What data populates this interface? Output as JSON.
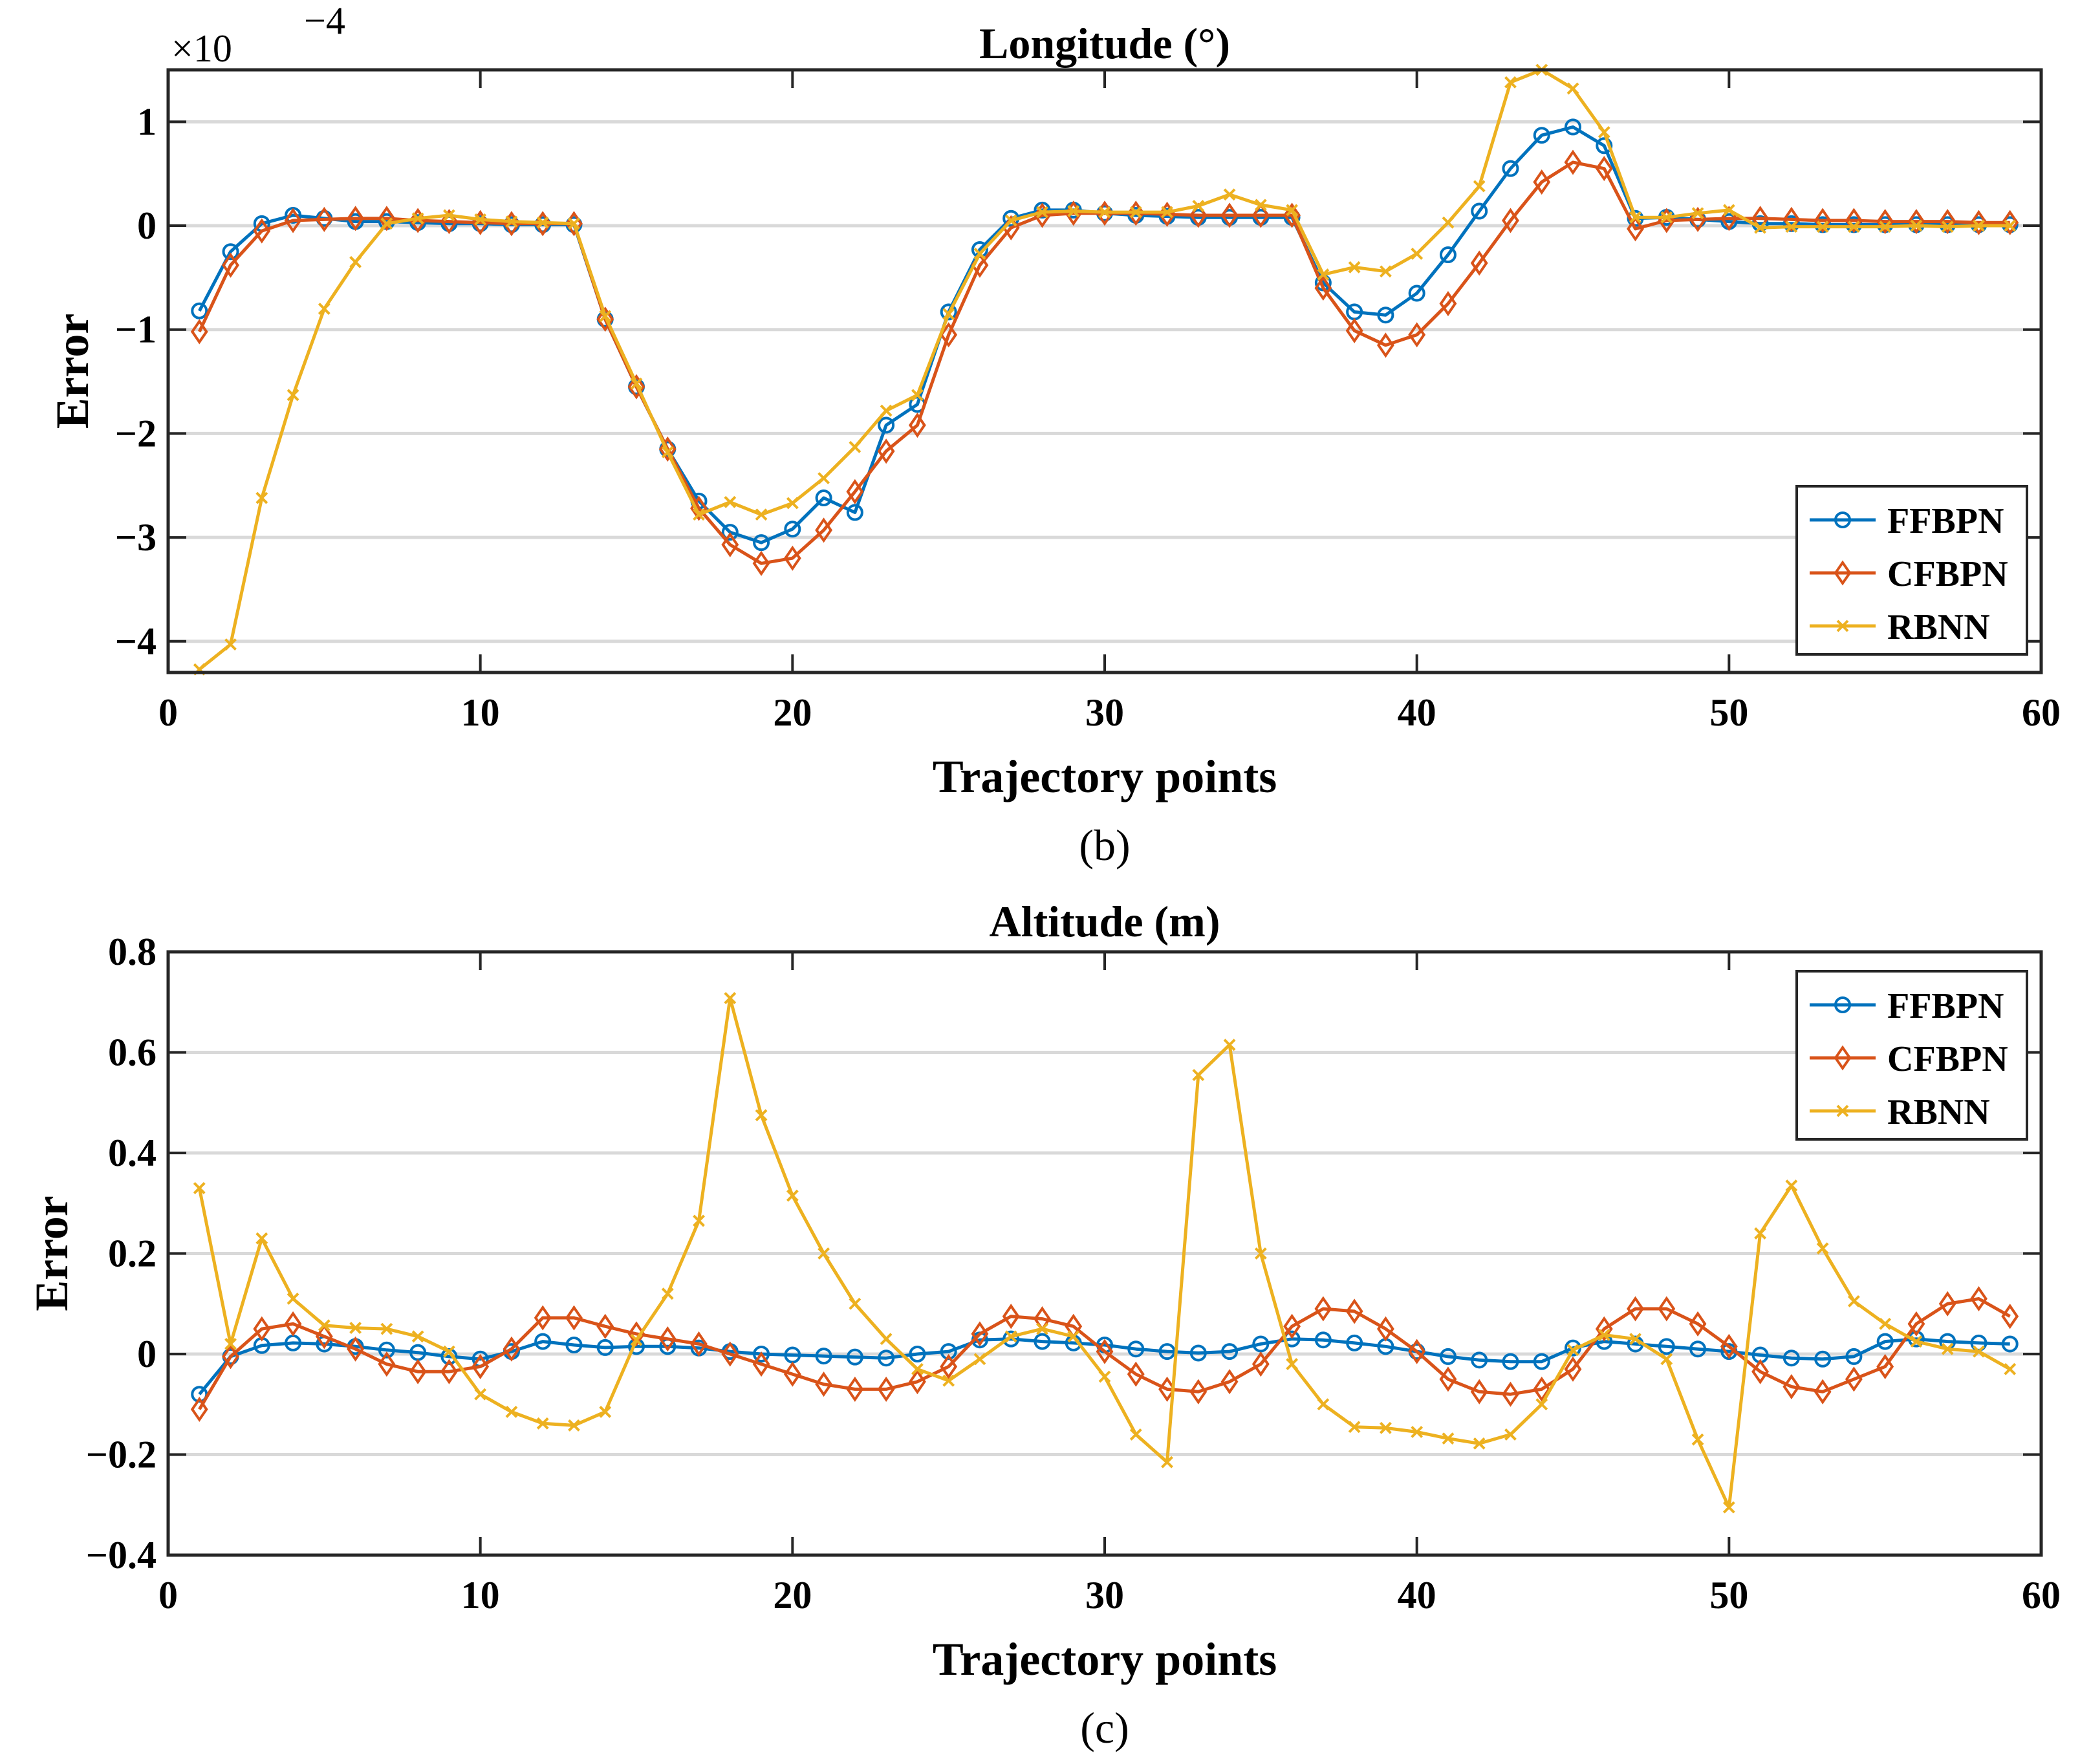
{
  "colors": {
    "FFBPN": "#0072BD",
    "CFBPN": "#D95319",
    "RBNN": "#EDB120",
    "grid": "#d9d9d9",
    "axes": "#262626"
  },
  "chart_data": [
    {
      "type": "line",
      "panel": "b",
      "title": "Longitude (°)",
      "caption": "(b)",
      "xlabel": "Trajectory points",
      "ylabel": "Error",
      "exponent_label": "×10",
      "exponent_power": "−4",
      "xlim": [
        0,
        60
      ],
      "ylim": [
        -4.3,
        1.5
      ],
      "xticks": [
        0,
        10,
        20,
        30,
        40,
        50,
        60
      ],
      "xtick_labels": [
        "0",
        "10",
        "20",
        "30",
        "40",
        "50",
        "60"
      ],
      "yticks": [
        1,
        0,
        -1,
        -2,
        -3,
        -4
      ],
      "ytick_labels": [
        "1",
        "0",
        "−1",
        "−2",
        "−3",
        "−4"
      ],
      "legend_position": "bottom-right",
      "x": [
        1,
        2,
        3,
        4,
        5,
        6,
        7,
        8,
        9,
        10,
        11,
        12,
        13,
        14,
        15,
        16,
        17,
        18,
        19,
        20,
        21,
        22,
        23,
        24,
        25,
        26,
        27,
        28,
        29,
        30,
        31,
        32,
        33,
        34,
        35,
        36,
        37,
        38,
        39,
        40,
        41,
        42,
        43,
        44,
        45,
        46,
        47,
        48,
        49,
        50,
        51,
        52,
        53,
        54,
        55,
        56,
        57,
        58,
        59
      ],
      "series": [
        {
          "name": "FFBPN",
          "marker": "circle",
          "values": [
            -0.82,
            -0.25,
            0.02,
            0.1,
            0.07,
            0.04,
            0.04,
            0.03,
            0.02,
            0.02,
            0.01,
            0.01,
            0.01,
            -0.9,
            -1.55,
            -2.15,
            -2.65,
            -2.95,
            -3.05,
            -2.92,
            -2.62,
            -2.76,
            -1.92,
            -1.72,
            -0.83,
            -0.23,
            0.07,
            0.15,
            0.15,
            0.12,
            0.1,
            0.09,
            0.08,
            0.08,
            0.08,
            0.08,
            -0.55,
            -0.83,
            -0.86,
            -0.65,
            -0.28,
            0.14,
            0.55,
            0.87,
            0.95,
            0.77,
            0.07,
            0.08,
            0.06,
            0.04,
            0.02,
            0.02,
            0.01,
            0.01,
            0.01,
            0.01,
            0.01,
            0.01,
            0.01
          ]
        },
        {
          "name": "CFBPN",
          "marker": "diamond",
          "values": [
            -1.02,
            -0.38,
            -0.05,
            0.05,
            0.06,
            0.07,
            0.07,
            0.05,
            0.04,
            0.03,
            0.02,
            0.02,
            0.02,
            -0.9,
            -1.55,
            -2.15,
            -2.72,
            -3.07,
            -3.25,
            -3.2,
            -2.93,
            -2.56,
            -2.17,
            -1.92,
            -1.05,
            -0.38,
            -0.02,
            0.1,
            0.12,
            0.12,
            0.12,
            0.11,
            0.1,
            0.1,
            0.1,
            0.1,
            -0.6,
            -1.01,
            -1.15,
            -1.05,
            -0.75,
            -0.36,
            0.05,
            0.42,
            0.61,
            0.55,
            -0.03,
            0.05,
            0.06,
            0.07,
            0.07,
            0.06,
            0.05,
            0.05,
            0.04,
            0.04,
            0.04,
            0.03,
            0.03
          ]
        },
        {
          "name": "RBNN",
          "marker": "x",
          "values": [
            -4.27,
            -4.03,
            -2.62,
            -1.63,
            -0.8,
            -0.35,
            0.02,
            0.07,
            0.1,
            0.06,
            0.04,
            0.03,
            0.02,
            -0.87,
            -1.52,
            -2.18,
            -2.78,
            -2.66,
            -2.78,
            -2.67,
            -2.43,
            -2.13,
            -1.78,
            -1.63,
            -0.85,
            -0.27,
            0.05,
            0.13,
            0.14,
            0.13,
            0.13,
            0.13,
            0.19,
            0.3,
            0.2,
            0.15,
            -0.47,
            -0.4,
            -0.44,
            -0.27,
            0.03,
            0.38,
            1.38,
            1.5,
            1.32,
            0.9,
            0.08,
            0.08,
            0.12,
            0.15,
            -0.02,
            -0.01,
            -0.01,
            -0.01,
            -0.01,
            0.0,
            -0.01,
            0.0,
            0.0
          ]
        }
      ]
    },
    {
      "type": "line",
      "panel": "c",
      "title": "Altitude (m)",
      "caption": "(c)",
      "xlabel": "Trajectory points",
      "ylabel": "Error",
      "xlim": [
        0,
        60
      ],
      "ylim": [
        -0.4,
        0.8
      ],
      "xticks": [
        0,
        10,
        20,
        30,
        40,
        50,
        60
      ],
      "xtick_labels": [
        "0",
        "10",
        "20",
        "30",
        "40",
        "50",
        "60"
      ],
      "yticks": [
        0.8,
        0.6,
        0.4,
        0.2,
        0,
        -0.2,
        -0.4
      ],
      "ytick_labels": [
        "0.8",
        "0.6",
        "0.4",
        "0.2",
        "0",
        "−0.2",
        "−0.4"
      ],
      "legend_position": "top-right",
      "x": [
        1,
        2,
        3,
        4,
        5,
        6,
        7,
        8,
        9,
        10,
        11,
        12,
        13,
        14,
        15,
        16,
        17,
        18,
        19,
        20,
        21,
        22,
        23,
        24,
        25,
        26,
        27,
        28,
        29,
        30,
        31,
        32,
        33,
        34,
        35,
        36,
        37,
        38,
        39,
        40,
        41,
        42,
        43,
        44,
        45,
        46,
        47,
        48,
        49,
        50,
        51,
        52,
        53,
        54,
        55,
        56,
        57,
        58,
        59
      ],
      "series": [
        {
          "name": "FFBPN",
          "marker": "circle",
          "values": [
            -0.08,
            -0.005,
            0.017,
            0.022,
            0.02,
            0.015,
            0.008,
            0.003,
            -0.005,
            -0.01,
            0.005,
            0.025,
            0.018,
            0.013,
            0.015,
            0.015,
            0.012,
            0.005,
            0.0,
            -0.002,
            -0.004,
            -0.006,
            -0.008,
            0.0,
            0.005,
            0.028,
            0.03,
            0.025,
            0.022,
            0.018,
            0.01,
            0.005,
            0.002,
            0.005,
            0.02,
            0.03,
            0.028,
            0.022,
            0.015,
            0.005,
            -0.005,
            -0.012,
            -0.015,
            -0.015,
            0.012,
            0.025,
            0.02,
            0.015,
            0.01,
            0.005,
            -0.002,
            -0.008,
            -0.01,
            -0.005,
            0.025,
            0.03,
            0.025,
            0.022,
            0.02
          ]
        },
        {
          "name": "CFBPN",
          "marker": "diamond",
          "values": [
            -0.11,
            -0.005,
            0.05,
            0.06,
            0.035,
            0.01,
            -0.02,
            -0.035,
            -0.035,
            -0.025,
            0.01,
            0.072,
            0.072,
            0.055,
            0.04,
            0.03,
            0.02,
            0.0,
            -0.02,
            -0.04,
            -0.06,
            -0.07,
            -0.07,
            -0.055,
            -0.025,
            0.04,
            0.075,
            0.07,
            0.055,
            0.005,
            -0.04,
            -0.07,
            -0.075,
            -0.055,
            -0.02,
            0.055,
            0.09,
            0.085,
            0.05,
            0.005,
            -0.05,
            -0.075,
            -0.08,
            -0.07,
            -0.03,
            0.05,
            0.09,
            0.09,
            0.06,
            0.015,
            -0.035,
            -0.065,
            -0.075,
            -0.05,
            -0.025,
            0.06,
            0.1,
            0.11,
            0.075
          ]
        },
        {
          "name": "RBNN",
          "marker": "x",
          "values": [
            0.33,
            0.02,
            0.23,
            0.11,
            0.057,
            0.052,
            0.05,
            0.035,
            0.005,
            -0.08,
            -0.115,
            -0.138,
            -0.142,
            -0.115,
            0.028,
            0.12,
            0.265,
            0.708,
            0.475,
            0.315,
            0.2,
            0.1,
            0.03,
            -0.03,
            -0.053,
            -0.01,
            0.035,
            0.05,
            0.035,
            -0.045,
            -0.16,
            -0.215,
            0.555,
            0.615,
            0.2,
            -0.02,
            -0.1,
            -0.145,
            -0.147,
            -0.155,
            -0.168,
            -0.178,
            -0.16,
            -0.1,
            0.008,
            0.038,
            0.03,
            -0.01,
            -0.17,
            -0.305,
            0.24,
            0.335,
            0.21,
            0.105,
            0.06,
            0.025,
            0.01,
            0.005,
            -0.03
          ]
        }
      ]
    }
  ]
}
